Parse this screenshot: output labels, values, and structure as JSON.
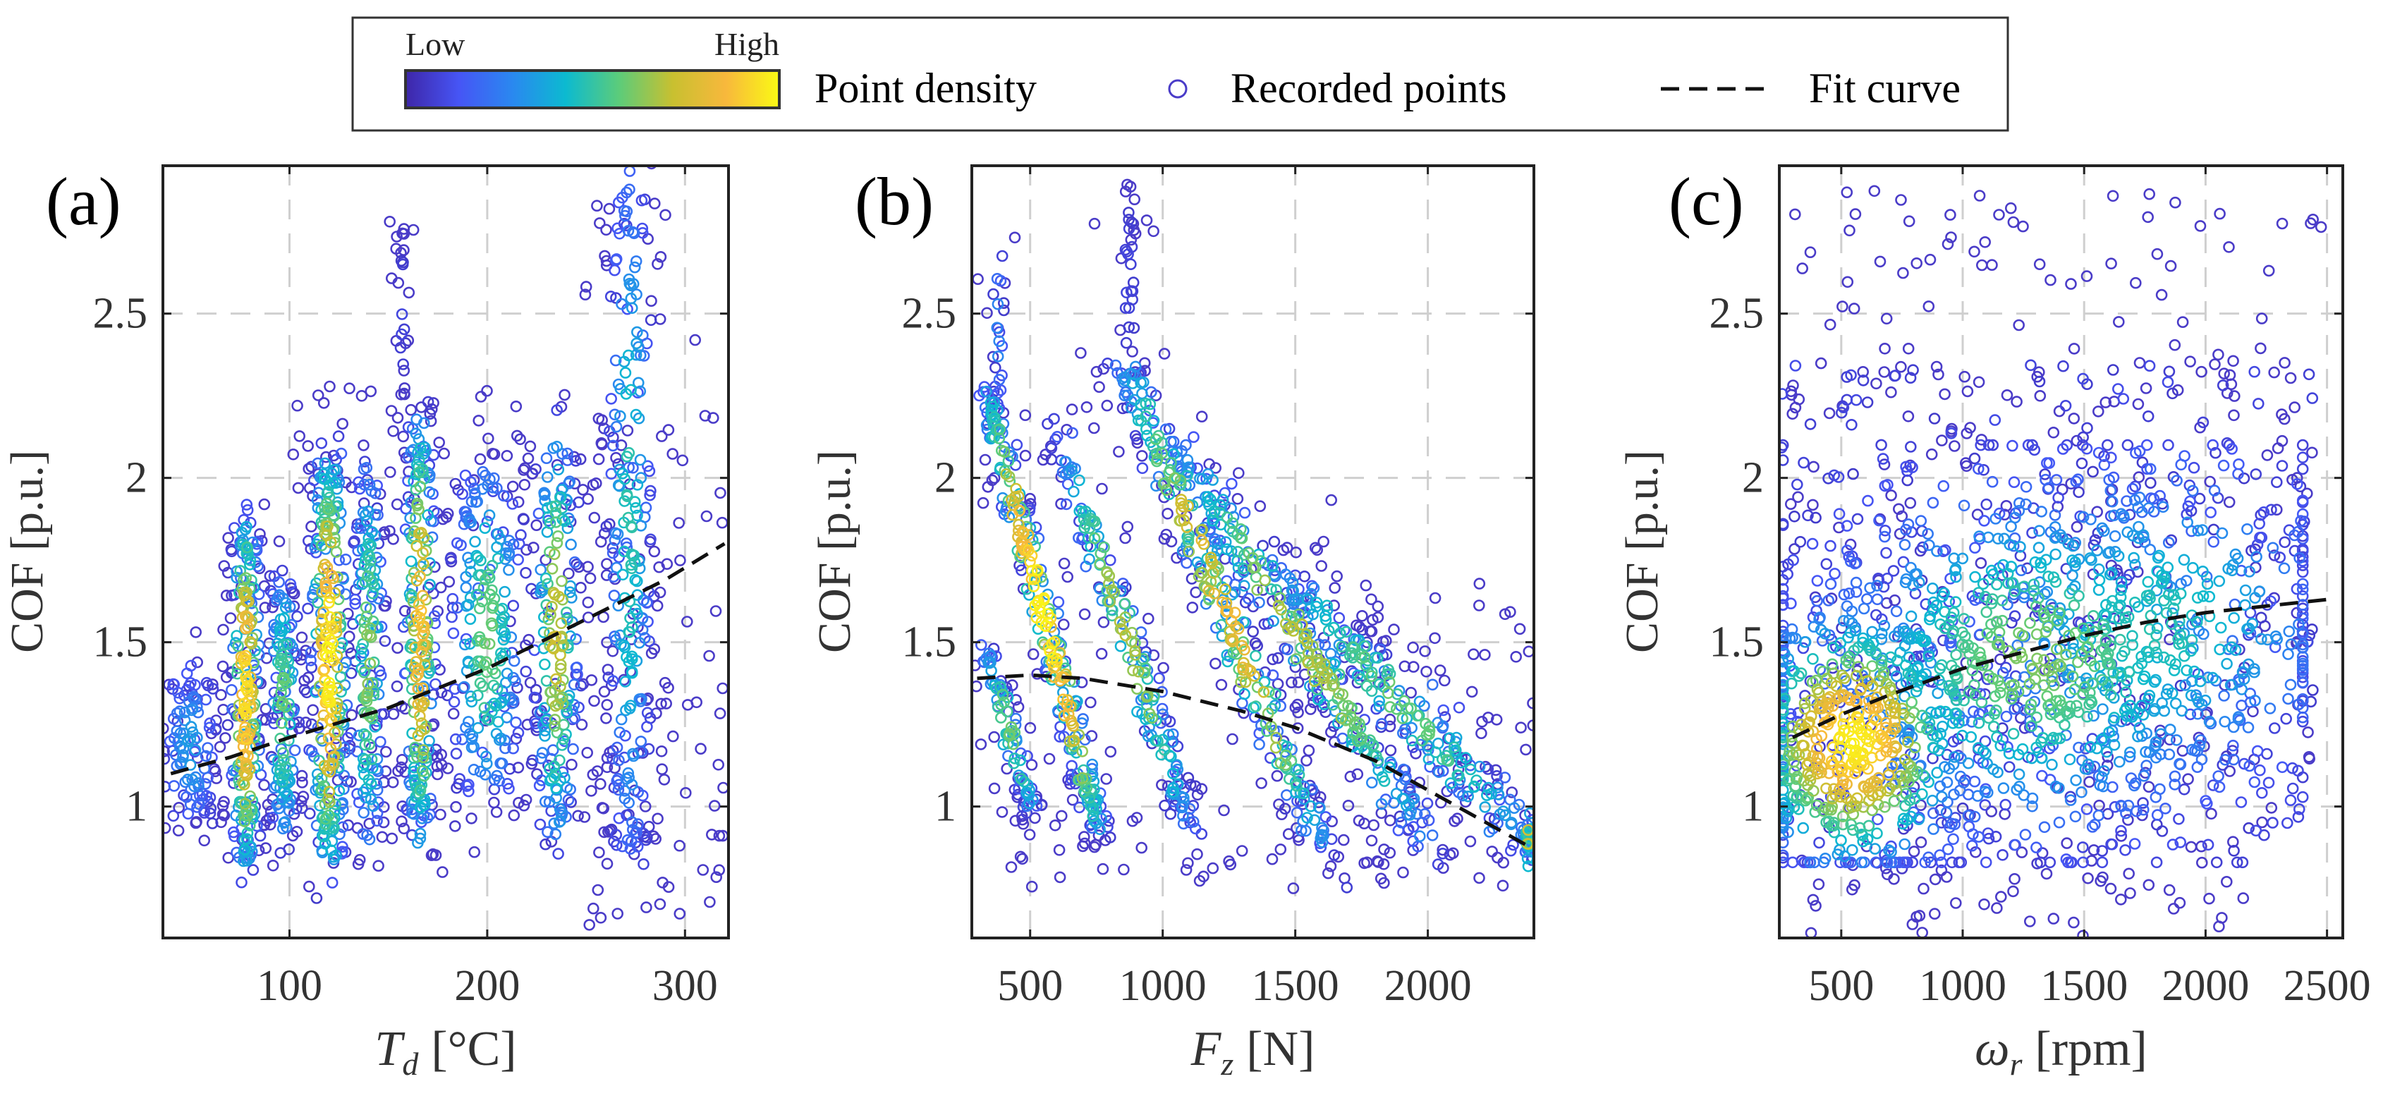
{
  "legend": {
    "low_label": "Low",
    "high_label": "High",
    "density_label": "Point density",
    "points_label": "Recorded points",
    "fit_label": "Fit curve",
    "colormap": [
      "#3e26a8",
      "#4655f5",
      "#2a88f0",
      "#0cbad0",
      "#5ccc7a",
      "#c8c030",
      "#f8b83c",
      "#fafa14"
    ],
    "point_color": "#4a3cc8",
    "fit_color": "#111111"
  },
  "chart_data": [
    {
      "type": "scatter",
      "panel_label": "(a)",
      "xlabel_main": "T",
      "xlabel_sub": "d",
      "xlabel_unit": "[°C]",
      "ylabel": "COF [p.u.]",
      "xlim": [
        36,
        322
      ],
      "ylim": [
        0.6,
        2.95
      ],
      "xticks": [
        100,
        200,
        300
      ],
      "yticks": [
        1,
        1.5,
        2,
        2.5
      ],
      "xtick_labels": [
        "100",
        "200",
        "300"
      ],
      "ytick_labels": [
        "1",
        "1.5",
        "2",
        "2.5"
      ],
      "grid": true,
      "fit_curve": {
        "x": [
          40,
          70,
          100,
          150,
          200,
          250,
          290,
          320
        ],
        "y": [
          1.1,
          1.15,
          1.21,
          1.3,
          1.42,
          1.57,
          1.69,
          1.8
        ]
      },
      "clusters": [
        {
          "type": "band",
          "from": [
            50,
            0.95
          ],
          "to": [
            50,
            1.4
          ],
          "sd": 8,
          "n": 120,
          "peak": 0.35
        },
        {
          "type": "band",
          "from": [
            78,
            0.85
          ],
          "to": [
            78,
            1.85
          ],
          "sd": 4,
          "n": 260,
          "peak": 0.95
        },
        {
          "type": "band",
          "from": [
            97,
            0.9
          ],
          "to": [
            97,
            1.7
          ],
          "sd": 4,
          "n": 150,
          "peak": 0.6
        },
        {
          "type": "band",
          "from": [
            120,
            0.85
          ],
          "to": [
            120,
            2.05
          ],
          "sd": 5,
          "n": 300,
          "peak": 1.0
        },
        {
          "type": "band",
          "from": [
            140,
            0.9
          ],
          "to": [
            140,
            2.0
          ],
          "sd": 4,
          "n": 180,
          "peak": 0.65
        },
        {
          "type": "band",
          "from": [
            166,
            0.92
          ],
          "to": [
            166,
            2.15
          ],
          "sd": 4,
          "n": 250,
          "peak": 0.9
        },
        {
          "type": "band",
          "from": [
            157,
            2.2
          ],
          "to": [
            157,
            2.75
          ],
          "sd": 1.5,
          "n": 30,
          "peak": 0.1
        },
        {
          "type": "band",
          "from": [
            200,
            1.05
          ],
          "to": [
            200,
            2.0
          ],
          "sd": 10,
          "n": 250,
          "peak": 0.6
        },
        {
          "type": "band",
          "from": [
            235,
            0.95
          ],
          "to": [
            235,
            2.1
          ],
          "sd": 6,
          "n": 220,
          "peak": 0.75
        },
        {
          "type": "band",
          "from": [
            272,
            0.85
          ],
          "to": [
            272,
            2.9
          ],
          "sd": 6,
          "n": 260,
          "peak": 0.5
        },
        {
          "type": "scatter",
          "x": [
            40,
            320
          ],
          "y": [
            0.8,
            1.4
          ],
          "n": 60,
          "peak": 0.02
        },
        {
          "type": "scatter",
          "x": [
            250,
            320
          ],
          "y": [
            0.6,
            2.2
          ],
          "n": 80,
          "peak": 0.02
        },
        {
          "type": "scatter",
          "x": [
            100,
            260
          ],
          "y": [
            1.9,
            2.3
          ],
          "n": 40,
          "peak": 0.02
        }
      ]
    },
    {
      "type": "scatter",
      "panel_label": "(b)",
      "xlabel_main": "F",
      "xlabel_sub": "z",
      "xlabel_unit": "[N]",
      "ylabel": "COF [p.u.]",
      "xlim": [
        280,
        2400
      ],
      "ylim": [
        0.6,
        2.95
      ],
      "xticks": [
        500,
        1000,
        1500,
        2000
      ],
      "yticks": [
        1,
        1.5,
        2,
        2.5
      ],
      "xtick_labels": [
        "500",
        "1000",
        "1500",
        "2000"
      ],
      "ytick_labels": [
        "1",
        "1.5",
        "2",
        "2.5"
      ],
      "grid": true,
      "fit_curve": {
        "x": [
          300,
          500,
          700,
          1000,
          1300,
          1500,
          1800,
          2000,
          2200,
          2400
        ],
        "y": [
          1.39,
          1.4,
          1.39,
          1.35,
          1.29,
          1.24,
          1.14,
          1.05,
          0.96,
          0.87
        ]
      },
      "clusters": [
        {
          "type": "band",
          "from": [
            340,
            2.25
          ],
          "to": [
            760,
            0.93
          ],
          "sd": 25,
          "n": 300,
          "peak": 1.0
        },
        {
          "type": "band",
          "from": [
            330,
            1.5
          ],
          "to": [
            520,
            0.95
          ],
          "sd": 20,
          "n": 100,
          "peak": 0.6
        },
        {
          "type": "band",
          "from": [
            620,
            2.1
          ],
          "to": [
            1100,
            0.95
          ],
          "sd": 30,
          "n": 200,
          "peak": 0.7
        },
        {
          "type": "band",
          "from": [
            850,
            2.35
          ],
          "to": [
            1600,
            0.88
          ],
          "sd": 40,
          "n": 300,
          "peak": 0.85
        },
        {
          "type": "band",
          "from": [
            1050,
            2.1
          ],
          "to": [
            2000,
            0.9
          ],
          "sd": 50,
          "n": 300,
          "peak": 0.7
        },
        {
          "type": "band",
          "from": [
            1400,
            1.75
          ],
          "to": [
            2400,
            0.88
          ],
          "sd": 60,
          "n": 250,
          "peak": 0.6
        },
        {
          "type": "band",
          "from": [
            870,
            2.3
          ],
          "to": [
            870,
            2.9
          ],
          "sd": 25,
          "n": 40,
          "peak": 0.1
        },
        {
          "type": "band",
          "from": [
            380,
            2.2
          ],
          "to": [
            380,
            2.7
          ],
          "sd": 12,
          "n": 30,
          "peak": 0.3
        },
        {
          "type": "band",
          "from": [
            2380,
            0.85
          ],
          "to": [
            2380,
            0.95
          ],
          "sd": 8,
          "n": 30,
          "peak": 0.8
        },
        {
          "type": "scatter",
          "x": [
            350,
            2300
          ],
          "y": [
            0.75,
            1.1
          ],
          "n": 80,
          "peak": 0.02
        },
        {
          "type": "scatter",
          "x": [
            1500,
            2400
          ],
          "y": [
            1.1,
            1.7
          ],
          "n": 60,
          "peak": 0.02
        }
      ]
    },
    {
      "type": "scatter",
      "panel_label": "(c)",
      "xlabel_main": "ω",
      "xlabel_sub": "r",
      "xlabel_unit": "[rpm]",
      "ylabel": "COF [p.u.]",
      "xlim": [
        245,
        2565
      ],
      "ylim": [
        0.6,
        2.95
      ],
      "xticks": [
        500,
        1000,
        1500,
        2000,
        2500
      ],
      "yticks": [
        1,
        1.5,
        2,
        2.5
      ],
      "xtick_labels": [
        "500",
        "1000",
        "1500",
        "2000",
        "2500"
      ],
      "ytick_labels": [
        "1",
        "1.5",
        "2",
        "2.5"
      ],
      "grid": true,
      "fit_curve": {
        "x": [
          300,
          500,
          700,
          1000,
          1250,
          1500,
          1750,
          2000,
          2250,
          2500
        ],
        "y": [
          1.21,
          1.28,
          1.34,
          1.42,
          1.47,
          1.52,
          1.56,
          1.59,
          1.61,
          1.63
        ]
      },
      "clusters": [
        {
          "type": "scatter",
          "x": [
            250,
            2450
          ],
          "y": [
            0.85,
            2.35
          ],
          "n": 450,
          "peak": 0.12
        },
        {
          "type": "blob",
          "center": [
            1300,
            1.45
          ],
          "sd": [
            500,
            0.3
          ],
          "n": 650,
          "peak": 0.6
        },
        {
          "type": "blob",
          "center": [
            1800,
            1.55
          ],
          "sd": [
            450,
            0.3
          ],
          "n": 400,
          "peak": 0.45
        },
        {
          "type": "blob",
          "center": [
            550,
            1.2
          ],
          "sd": [
            250,
            0.22
          ],
          "n": 550,
          "peak": 1.0
        },
        {
          "type": "scatter",
          "x": [
            300,
            2500
          ],
          "y": [
            2.2,
            2.9
          ],
          "n": 80,
          "peak": 0.0
        },
        {
          "type": "scatter",
          "x": [
            300,
            2200
          ],
          "y": [
            0.6,
            0.9
          ],
          "n": 60,
          "peak": 0.0
        }
      ]
    }
  ]
}
